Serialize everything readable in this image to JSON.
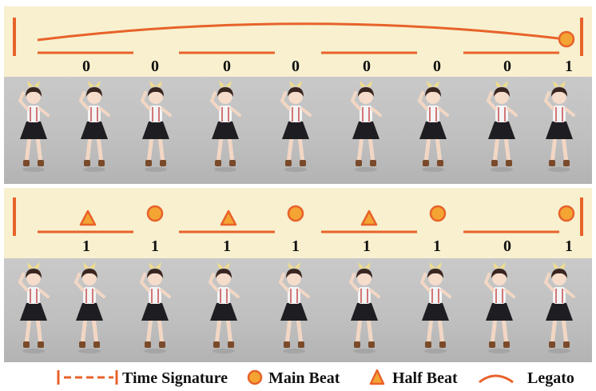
{
  "rows": [
    {
      "digits": [
        "0",
        "0",
        "0",
        "0",
        "0",
        "0",
        "0",
        "1"
      ]
    },
    {
      "digits": [
        "1",
        "1",
        "1",
        "1",
        "1",
        "1",
        "0",
        "1"
      ]
    }
  ],
  "legend": {
    "time_signature": "Time Signature",
    "main_beat": "Main Beat",
    "half_beat": "Half Beat",
    "legato": "Legato"
  },
  "colors": {
    "accent": "#e8622a",
    "beat_fill": "#f3a433",
    "band": "#f8f0cf",
    "strip": "#bfbfbf"
  }
}
